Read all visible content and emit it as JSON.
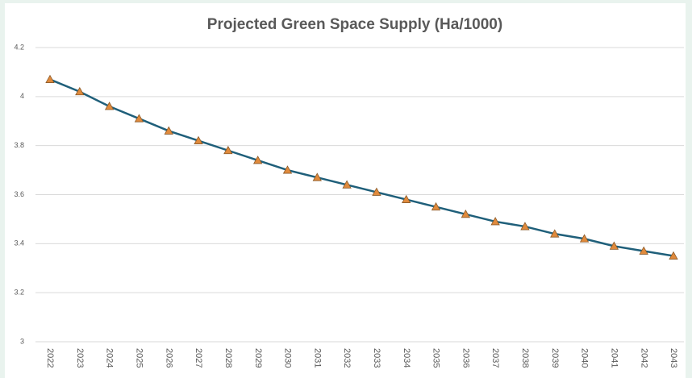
{
  "chart_data": {
    "type": "line",
    "title": "Projected Green Space Supply (Ha/1000)",
    "categories": [
      "2022",
      "2023",
      "2024",
      "2025",
      "2026",
      "2027",
      "2028",
      "2029",
      "2030",
      "2031",
      "2032",
      "2033",
      "2034",
      "2035",
      "2036",
      "2037",
      "2038",
      "2039",
      "2040",
      "2041",
      "2042",
      "2043"
    ],
    "values": [
      4.07,
      4.02,
      3.96,
      3.91,
      3.86,
      3.82,
      3.78,
      3.74,
      3.7,
      3.67,
      3.64,
      3.61,
      3.58,
      3.55,
      3.52,
      3.49,
      3.47,
      3.44,
      3.42,
      3.39,
      3.37,
      3.35
    ],
    "color": "#1f5f7a",
    "marker_color": "#e08a3c",
    "ylim": [
      3,
      4.2
    ],
    "yticks": [
      3,
      3.2,
      3.4,
      3.6,
      3.8,
      4,
      4.2
    ],
    "grid": true
  }
}
